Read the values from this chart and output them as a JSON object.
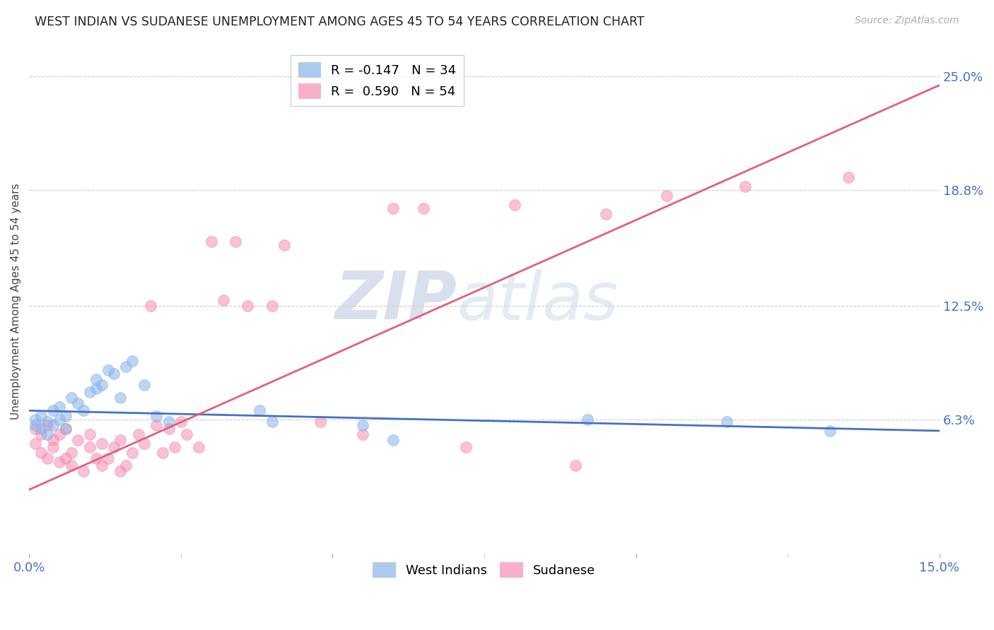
{
  "title": "WEST INDIAN VS SUDANESE UNEMPLOYMENT AMONG AGES 45 TO 54 YEARS CORRELATION CHART",
  "source": "Source: ZipAtlas.com",
  "ylabel": "Unemployment Among Ages 45 to 54 years",
  "xlim": [
    0.0,
    0.15
  ],
  "ylim": [
    -0.01,
    0.265
  ],
  "yticks_right": [
    0.063,
    0.125,
    0.188,
    0.25
  ],
  "yticklabels_right": [
    "6.3%",
    "12.5%",
    "18.8%",
    "25.0%"
  ],
  "legend_entries": [
    {
      "label": "R = -0.147   N = 34",
      "color": "#8ab4e8"
    },
    {
      "label": "R =  0.590   N = 54",
      "color": "#f48fb1"
    }
  ],
  "west_indians_x": [
    0.001,
    0.001,
    0.002,
    0.002,
    0.003,
    0.003,
    0.004,
    0.004,
    0.005,
    0.005,
    0.006,
    0.006,
    0.007,
    0.008,
    0.009,
    0.01,
    0.011,
    0.011,
    0.012,
    0.013,
    0.014,
    0.015,
    0.016,
    0.017,
    0.019,
    0.021,
    0.023,
    0.038,
    0.04,
    0.055,
    0.06,
    0.092,
    0.115,
    0.132
  ],
  "west_indians_y": [
    0.06,
    0.063,
    0.058,
    0.065,
    0.055,
    0.062,
    0.068,
    0.06,
    0.063,
    0.07,
    0.058,
    0.065,
    0.075,
    0.072,
    0.068,
    0.078,
    0.08,
    0.085,
    0.082,
    0.09,
    0.088,
    0.075,
    0.092,
    0.095,
    0.082,
    0.065,
    0.062,
    0.068,
    0.062,
    0.06,
    0.052,
    0.063,
    0.062,
    0.057
  ],
  "sudanese_x": [
    0.001,
    0.001,
    0.002,
    0.002,
    0.003,
    0.003,
    0.004,
    0.004,
    0.005,
    0.005,
    0.006,
    0.006,
    0.007,
    0.007,
    0.008,
    0.009,
    0.01,
    0.01,
    0.011,
    0.012,
    0.012,
    0.013,
    0.014,
    0.015,
    0.015,
    0.016,
    0.017,
    0.018,
    0.019,
    0.02,
    0.021,
    0.022,
    0.023,
    0.024,
    0.025,
    0.026,
    0.028,
    0.03,
    0.032,
    0.034,
    0.036,
    0.04,
    0.042,
    0.048,
    0.055,
    0.06,
    0.065,
    0.072,
    0.08,
    0.09,
    0.095,
    0.105,
    0.118,
    0.135
  ],
  "sudanese_y": [
    0.05,
    0.058,
    0.045,
    0.055,
    0.042,
    0.06,
    0.048,
    0.052,
    0.04,
    0.055,
    0.042,
    0.058,
    0.038,
    0.045,
    0.052,
    0.035,
    0.048,
    0.055,
    0.042,
    0.05,
    0.038,
    0.042,
    0.048,
    0.035,
    0.052,
    0.038,
    0.045,
    0.055,
    0.05,
    0.125,
    0.06,
    0.045,
    0.058,
    0.048,
    0.062,
    0.055,
    0.048,
    0.16,
    0.128,
    0.16,
    0.125,
    0.125,
    0.158,
    0.062,
    0.055,
    0.178,
    0.178,
    0.048,
    0.18,
    0.038,
    0.175,
    0.185,
    0.19,
    0.195
  ],
  "wi_color": "#8ab4e8",
  "su_color": "#f48fb1",
  "wi_line_color": "#4472c4",
  "su_line_color": "#e06080",
  "background_color": "#ffffff",
  "grid_color": "#cccccc",
  "wi_trend": [
    0.0,
    0.15,
    0.068,
    0.057
  ],
  "su_trend": [
    0.0,
    0.15,
    0.025,
    0.245
  ]
}
